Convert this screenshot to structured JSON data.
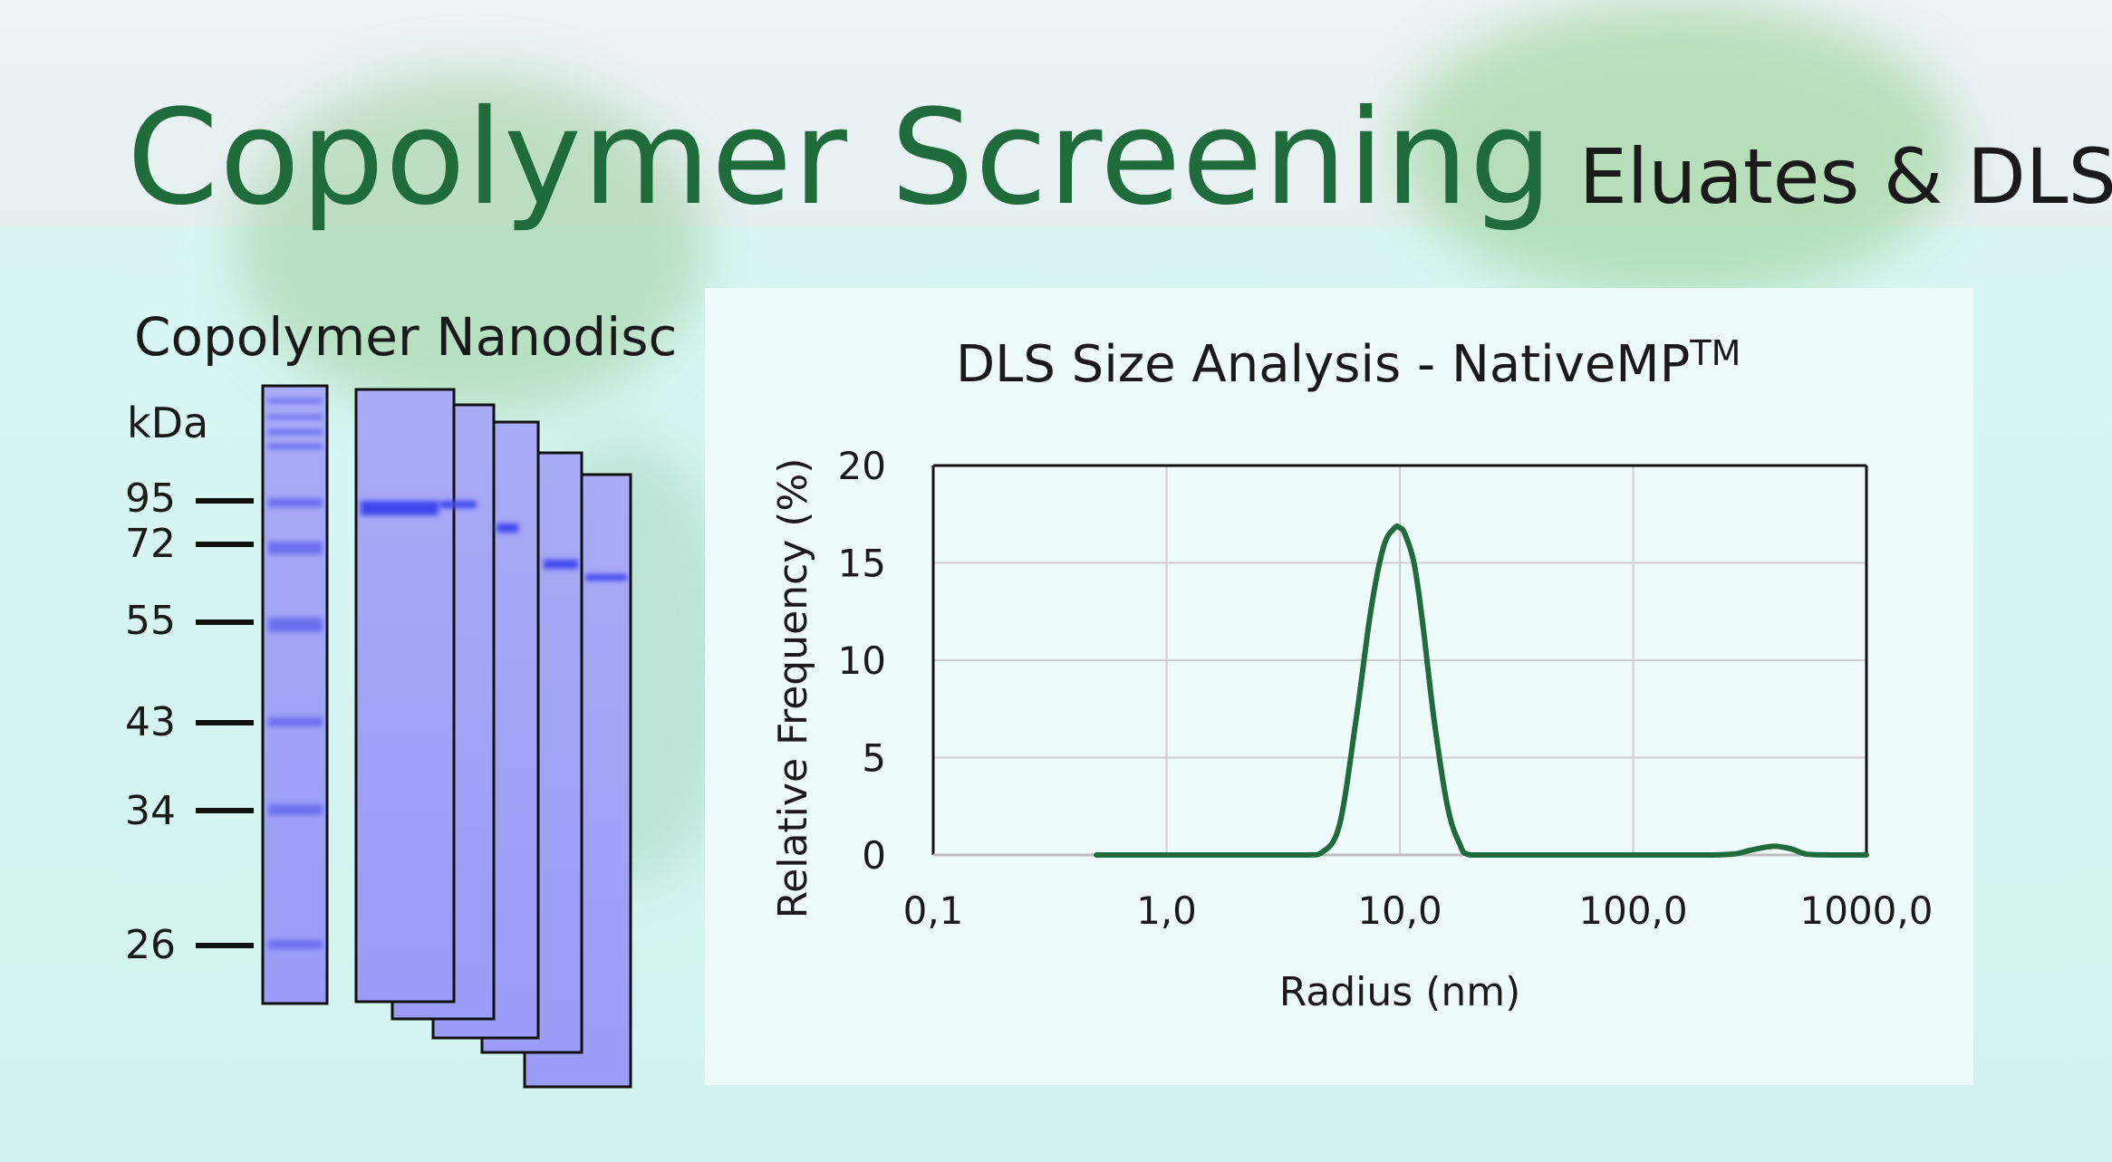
{
  "header": {
    "title": "Copolymer Screening",
    "subtitle": "Eluates & DLS"
  },
  "gel": {
    "heading": "Copolymer Nanodisc",
    "unit_label": "kDa",
    "markers": [
      "95",
      "72",
      "55",
      "43",
      "34",
      "26"
    ]
  },
  "chart_data": {
    "type": "line",
    "title": "DLS Size Analysis - NativeMP",
    "title_superscript": "TM",
    "xlabel": "Radius (nm)",
    "ylabel": "Relative Frequency (%)",
    "x_scale": "log",
    "xlim": [
      0.1,
      1000
    ],
    "ylim": [
      0,
      20
    ],
    "x_ticks": [
      0.1,
      1,
      10,
      100,
      1000
    ],
    "x_tick_labels": [
      "0,1",
      "1,0",
      "10,0",
      "100,0",
      "1000,0"
    ],
    "y_ticks": [
      0,
      5,
      10,
      15,
      20
    ],
    "y_tick_labels": [
      "0",
      "5",
      "10",
      "15",
      "20"
    ],
    "grid": true,
    "series": [
      {
        "color": "#1f6b3b",
        "x": [
          0.5,
          1,
          2,
          4,
          4.6,
          5.5,
          6.5,
          7.5,
          8.5,
          9.5,
          10,
          10.5,
          11.5,
          12.5,
          14,
          16,
          18,
          20,
          30,
          60,
          100,
          200,
          270,
          320,
          400,
          480,
          550,
          700,
          1000
        ],
        "y": [
          0,
          0,
          0,
          0,
          0.1,
          1.5,
          7,
          12.5,
          15.8,
          16.8,
          16.8,
          16.5,
          15,
          12,
          7,
          2.5,
          0.6,
          0,
          0,
          0,
          0,
          0,
          0.05,
          0.25,
          0.45,
          0.3,
          0.05,
          0,
          0
        ]
      }
    ]
  }
}
